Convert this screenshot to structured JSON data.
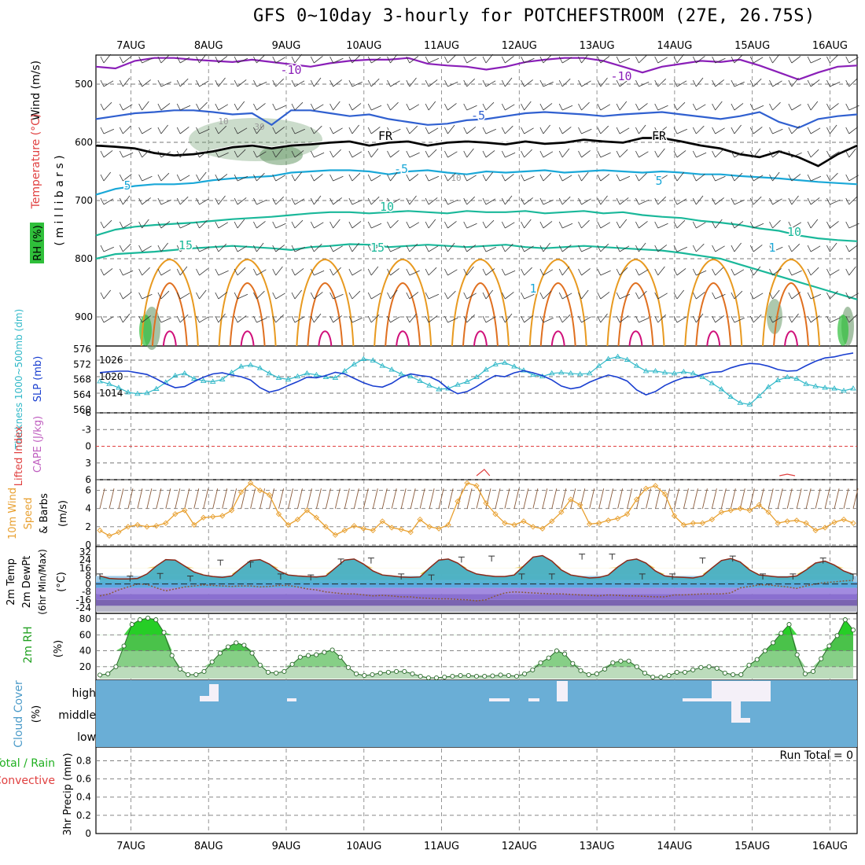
{
  "title": "GFS 0~10day 3-hourly for POTCHEFSTROOM (27E, 26.75S)",
  "dates": [
    "7AUG",
    "8AUG",
    "9AUG",
    "10AUG",
    "11AUG",
    "12AUG",
    "13AUG",
    "14AUG",
    "15AUG",
    "16AUG"
  ],
  "run_total": "Run Total = 0",
  "colors": {
    "rh_fill": "#2fbf3a",
    "temp_blue": "#3060d0",
    "temp_purple": "#8a1fb8",
    "temp_cyan": "#1aa8d8",
    "temp_teal": "#1ab89a",
    "temp_orange": "#e89a20",
    "thickness": "#30b8c8",
    "slp": "#1a3fd0",
    "wind10m": "#e8a030",
    "cloud_bg": "#6aaed6",
    "lifted_index": "#e04040"
  },
  "chart_data": [
    {
      "type": "contour",
      "panel": "upper-air",
      "ylabel_parts": [
        "Wind (m/s)",
        "Temperature (°C)",
        "RH (%)"
      ],
      "yaxis_label": "( m i l l i b a r s )",
      "yticks": [
        500,
        600,
        700,
        800,
        900
      ],
      "ylim": [
        950,
        450
      ],
      "temperature_labels": [
        "-10",
        "-10",
        "-5",
        "FR",
        "FR",
        "-5",
        "5",
        "5",
        "10",
        "10",
        "15",
        "15",
        "1",
        "1"
      ],
      "rh_labels": [
        "10",
        "30",
        "10"
      ],
      "isotherm_levels": {
        "m10": [
          470,
          473,
          460,
          455,
          455,
          458,
          460,
          462,
          458,
          462,
          466,
          470,
          464,
          460,
          458,
          458,
          455,
          465,
          468,
          470,
          475,
          470,
          462,
          458,
          455,
          455,
          460,
          470,
          480,
          470,
          465,
          460,
          462,
          458,
          468,
          480,
          492,
          480,
          470,
          468
        ],
        "m5": [
          560,
          555,
          550,
          548,
          545,
          545,
          548,
          552,
          550,
          570,
          545,
          545,
          550,
          555,
          552,
          560,
          565,
          570,
          568,
          562,
          560,
          555,
          550,
          548,
          550,
          552,
          555,
          552,
          550,
          548,
          552,
          556,
          560,
          555,
          548,
          565,
          575,
          560,
          555,
          552
        ],
        "fr": [
          605,
          607,
          610,
          618,
          622,
          620,
          615,
          608,
          605,
          610,
          605,
          603,
          600,
          598,
          605,
          600,
          598,
          605,
          600,
          598,
          600,
          603,
          598,
          602,
          600,
          595,
          598,
          600,
          592,
          592,
          598,
          605,
          610,
          620,
          625,
          615,
          625,
          640,
          620,
          605
        ],
        "t5": [
          690,
          680,
          675,
          672,
          672,
          670,
          665,
          662,
          660,
          658,
          652,
          650,
          648,
          648,
          650,
          655,
          650,
          648,
          652,
          655,
          650,
          652,
          650,
          648,
          652,
          650,
          648,
          650,
          652,
          650,
          652,
          655,
          655,
          658,
          660,
          662,
          665,
          668,
          670,
          672
        ],
        "t10": [
          760,
          750,
          745,
          742,
          740,
          738,
          735,
          732,
          730,
          728,
          725,
          722,
          720,
          720,
          722,
          720,
          718,
          720,
          722,
          718,
          720,
          720,
          718,
          722,
          720,
          718,
          722,
          720,
          725,
          728,
          730,
          735,
          738,
          742,
          748,
          752,
          760,
          765,
          768,
          770
        ],
        "t15": [
          800,
          792,
          790,
          788,
          785,
          782,
          780,
          778,
          780,
          782,
          785,
          780,
          778,
          775,
          776,
          780,
          778,
          776,
          778,
          780,
          778,
          776,
          780,
          782,
          780,
          778,
          780,
          782,
          784,
          786,
          790,
          795,
          800,
          810,
          820,
          830,
          840,
          850,
          860,
          870
        ]
      }
    },
    {
      "type": "line",
      "panel": "thickness-slp",
      "ylabel_left": "Thickness 1000~500mb (dm)",
      "ylabel_right": "SLP (mb)",
      "yticks_left": [
        560,
        564,
        568,
        572,
        576
      ],
      "yticks_right": [
        1014,
        1020,
        1026
      ],
      "series": [
        {
          "name": "Thickness 1000~500mb (dm)",
          "values": [
            567.5,
            566.8,
            565.8,
            564.6,
            564.2,
            564.4,
            565.5,
            567.2,
            569.0,
            569.6,
            568.2,
            567.6,
            567.4,
            568.0,
            569.8,
            571.4,
            571.8,
            571.0,
            569.6,
            568.4,
            568.0,
            568.8,
            569.6,
            569.2,
            568.6,
            568.4,
            570.2,
            572.0,
            573.4,
            573.0,
            571.6,
            570.6,
            569.4,
            568.8,
            567.6,
            566.4,
            565.4,
            565.6,
            566.6,
            567.4,
            568.6,
            570.6,
            572.0,
            572.4,
            571.4,
            570.4,
            569.2,
            568.8,
            569.6,
            569.8,
            569.6,
            569.4,
            569.6,
            571.6,
            573.4,
            574.0,
            573.2,
            571.6,
            570.2,
            570.2,
            569.8,
            569.6,
            570.0,
            569.6,
            568.6,
            567.0,
            565.4,
            563.4,
            561.8,
            561.4,
            563.6,
            566.0,
            567.8,
            568.6,
            568.2,
            566.8,
            566.2,
            565.8,
            565.6,
            565.0,
            565.6
          ]
        },
        {
          "name": "SLP (mb)",
          "values": [
            1021.5,
            1021.8,
            1022.0,
            1022.0,
            1021.4,
            1020.8,
            1019.2,
            1017.4,
            1016.0,
            1016.4,
            1018.2,
            1019.8,
            1021.0,
            1021.4,
            1020.6,
            1020.0,
            1018.8,
            1016.0,
            1014.4,
            1015.2,
            1016.8,
            1018.2,
            1019.8,
            1019.6,
            1020.4,
            1021.6,
            1021.0,
            1019.4,
            1017.8,
            1016.6,
            1016.2,
            1017.6,
            1019.8,
            1021.0,
            1020.4,
            1020.0,
            1018.4,
            1015.6,
            1013.8,
            1014.6,
            1016.4,
            1018.6,
            1020.4,
            1020.0,
            1021.4,
            1022.2,
            1021.4,
            1020.4,
            1018.8,
            1016.6,
            1015.6,
            1016.2,
            1018.0,
            1019.4,
            1020.6,
            1019.8,
            1018.4,
            1015.2,
            1013.4,
            1014.6,
            1016.8,
            1018.4,
            1019.6,
            1019.8,
            1020.8,
            1021.6,
            1021.8,
            1023.2,
            1024.2,
            1024.8,
            1024.6,
            1023.8,
            1022.6,
            1022.0,
            1022.2,
            1024.0,
            1025.6,
            1026.8,
            1027.2,
            1028.0,
            1028.6
          ]
        }
      ]
    },
    {
      "type": "line",
      "panel": "cape-li",
      "ylabel_left": "Lifted Index",
      "ylabel_right": "CAPE (J/kg)",
      "yticks": [
        "-6",
        "-3",
        "0",
        "3",
        "6"
      ],
      "ylim": [
        -6,
        6
      ],
      "series": [
        {
          "name": "CAPE (J/kg)",
          "x": [
            11.45,
            11.55,
            11.62
          ],
          "values": [
            0.1,
            0.5,
            0.1
          ]
        },
        {
          "name": "CAPE (J/kg)",
          "x": [
            15.35,
            15.45,
            15.55
          ],
          "values": [
            0.1,
            0.2,
            0.1
          ]
        }
      ]
    },
    {
      "type": "line",
      "panel": "wind10m",
      "ylabel": "10m Wind Speed & Barbs (m/s)",
      "yticks": [
        0,
        2,
        4,
        6
      ],
      "ylim": [
        0,
        7
      ],
      "series": [
        {
          "name": "10m Wind Speed",
          "values": [
            1.6,
            1.0,
            1.4,
            2.0,
            2.2,
            2.0,
            2.1,
            2.4,
            3.4,
            3.8,
            2.2,
            3.0,
            3.1,
            3.2,
            3.8,
            5.8,
            6.8,
            6.0,
            5.5,
            3.4,
            2.2,
            2.8,
            3.8,
            3.0,
            2.0,
            1.1,
            1.6,
            2.1,
            1.8,
            1.6,
            2.6,
            1.9,
            1.7,
            1.4,
            2.8,
            2.0,
            1.8,
            2.2,
            4.8,
            6.8,
            6.5,
            4.6,
            3.4,
            2.4,
            2.2,
            2.6,
            2.0,
            1.8,
            2.6,
            3.6,
            5.0,
            4.4,
            2.3,
            2.4,
            2.7,
            2.9,
            3.4,
            5.0,
            6.2,
            6.5,
            5.6,
            3.2,
            2.2,
            2.4,
            2.4,
            2.8,
            3.6,
            3.8,
            4.0,
            3.8,
            4.4,
            3.6,
            2.4,
            2.6,
            2.7,
            2.4,
            1.6,
            1.9,
            2.5,
            2.8,
            2.4
          ]
        }
      ]
    },
    {
      "type": "area",
      "panel": "temp2m",
      "ylabel": "2m Temp 2m DewPt (6hr Min/Max) (°C)",
      "yticks": [
        -24,
        -16,
        -8,
        0,
        8,
        16,
        24,
        32
      ],
      "ylim": [
        -28,
        36
      ],
      "series": [
        {
          "name": "2m Temp",
          "values": [
            8.0,
            5.5,
            5.0,
            5.0,
            5.5,
            10.0,
            18.0,
            24.5,
            24.0,
            18.0,
            12.0,
            9.0,
            7.5,
            6.5,
            8.0,
            16.0,
            23.5,
            24.5,
            20.0,
            13.0,
            9.0,
            8.0,
            7.5,
            7.0,
            8.0,
            16.0,
            24.0,
            25.0,
            20.0,
            13.0,
            9.0,
            8.0,
            7.0,
            6.5,
            7.0,
            16.0,
            24.0,
            25.0,
            21.0,
            14.0,
            10.0,
            8.5,
            7.5,
            7.5,
            9.0,
            18.0,
            27.0,
            28.5,
            23.0,
            14.0,
            9.0,
            7.5,
            6.0,
            6.5,
            9.0,
            17.0,
            23.5,
            25.0,
            21.0,
            13.0,
            8.0,
            7.0,
            6.5,
            6.0,
            8.0,
            16.0,
            23.5,
            25.5,
            22.0,
            14.0,
            9.0,
            8.0,
            7.0,
            7.0,
            8.0,
            14.0,
            21.0,
            23.0,
            19.0,
            13.0,
            9.5
          ]
        },
        {
          "name": "2m DewPt",
          "values": [
            -12.0,
            -10.0,
            -6.0,
            -3.0,
            0.0,
            -0.5,
            -4.0,
            -7.0,
            -5.0,
            -3.0,
            -2.0,
            -1.0,
            -1.5,
            -2.0,
            -2.5,
            -2.0,
            -2.0,
            -3.0,
            -2.5,
            -1.5,
            -1.5,
            -3.0,
            -5.0,
            -6.0,
            -8.0,
            -9.0,
            -10.0,
            -10.0,
            -11.0,
            -12.0,
            -11.5,
            -12.0,
            -13.0,
            -13.0,
            -14.0,
            -14.5,
            -15.0,
            -15.0,
            -15.5,
            -16.0,
            -17.0,
            -16.0,
            -12.0,
            -9.0,
            -8.0,
            -8.5,
            -9.0,
            -9.5,
            -10.0,
            -10.0,
            -10.5,
            -11.0,
            -11.5,
            -12.0,
            -11.0,
            -11.5,
            -12.0,
            -12.0,
            -12.5,
            -13.0,
            -13.0,
            -11.0,
            -11.0,
            -10.5,
            -10.0,
            -10.0,
            -10.0,
            -9.0,
            -4.0,
            -2.5,
            -1.0,
            -1.0,
            -2.0,
            -3.0,
            -4.5,
            -2.0,
            0.0,
            1.5,
            2.0,
            3.0,
            3.5
          ]
        },
        {
          "name": "6hr Max",
          "values": [
            10.0,
            8.0,
            10.5,
            8.0,
            24.0,
            22.0,
            10.0,
            9.0,
            25.0,
            26.0,
            10.0,
            9.0,
            27.0,
            28.0,
            10.0,
            10.0,
            30.0,
            30.0,
            10.0,
            10.0,
            26.0,
            28.0,
            10.0,
            10.0,
            26.0,
            10.0
          ]
        }
      ]
    },
    {
      "type": "area",
      "panel": "rh2m",
      "ylabel": "2m RH (%)",
      "yticks": [
        20,
        40,
        60,
        80
      ],
      "ylim": [
        5,
        85
      ],
      "series": [
        {
          "name": "2m RH",
          "values": [
            9.5,
            11.0,
            20.0,
            46.0,
            73.0,
            79.0,
            81.0,
            79.0,
            63.0,
            34.0,
            17.0,
            10.0,
            10.0,
            14.0,
            26.0,
            37.0,
            45.0,
            50.0,
            47.0,
            37.0,
            22.0,
            13.0,
            12.0,
            14.0,
            23.0,
            32.0,
            34.0,
            35.0,
            38.0,
            41.0,
            32.0,
            19.0,
            11.0,
            9.0,
            10.0,
            12.0,
            13.0,
            14.0,
            14.0,
            11.0,
            8.0,
            6.0,
            6.0,
            7.0,
            8.0,
            9.0,
            9.0,
            8.0,
            8.0,
            8.5,
            9.5,
            9.0,
            8.0,
            11.0,
            16.0,
            25.0,
            31.0,
            40.0,
            36.0,
            24.0,
            15.0,
            10.0,
            11.0,
            17.0,
            25.0,
            27.0,
            27.0,
            20.0,
            12.0,
            7.0,
            7.0,
            9.0,
            13.0,
            13.0,
            16.0,
            19.0,
            20.0,
            18.0,
            12.0,
            10.0,
            10.0,
            22.0,
            29.0,
            40.0,
            50.0,
            62.0,
            73.0,
            35.0,
            11.0,
            14.0,
            30.0,
            46.0,
            59.0,
            79.0,
            66.0
          ]
        }
      ]
    },
    {
      "type": "area",
      "panel": "cloud",
      "ylabel": "Cloud Cover (%)",
      "levels": [
        "high",
        "middle",
        "low"
      ]
    },
    {
      "type": "bar",
      "panel": "precip",
      "ylabel_parts": [
        "Total / Rain",
        "Convective",
        "3hr Precip (mm)"
      ],
      "yticks": [
        "0",
        "0.2",
        "0.4",
        "0.6",
        "0.8"
      ],
      "ylim": [
        0,
        0.95
      ],
      "values": []
    }
  ]
}
